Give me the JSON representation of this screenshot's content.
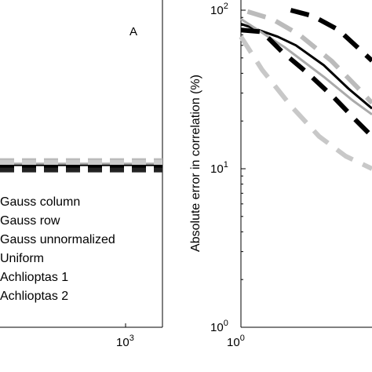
{
  "chart_data": [
    {
      "type": "line",
      "panel_label": "A",
      "x_scale": "log",
      "x_tick_labels": [
        {
          "base": "10",
          "exp": "3"
        }
      ],
      "legend": {
        "placement": "lower-left",
        "entries": [
          "Gauss column",
          "Gauss row",
          "Gauss unnormalized",
          "Uniform",
          "Achlioptas 1",
          "Achlioptas 2"
        ]
      },
      "series": [
        {
          "name": "Gauss column",
          "style": "solid",
          "color": "#000000",
          "y": [
            1.02,
            1.02
          ]
        },
        {
          "name": "Gauss row",
          "style": "solid",
          "color": "#aaaaaa",
          "y": [
            1.04,
            1.04
          ]
        },
        {
          "name": "Gauss unnormalized",
          "style": "dashed",
          "color": "#000000",
          "y": [
            1.0,
            1.0
          ]
        },
        {
          "name": "Uniform",
          "style": "dashed",
          "color": "#bbbbbb",
          "y": [
            1.07,
            1.07
          ]
        },
        {
          "name": "Achlioptas 1",
          "style": "dashed",
          "color": "#222222",
          "y": [
            0.97,
            0.97
          ]
        },
        {
          "name": "Achlioptas 2",
          "style": "dashed",
          "color": "#cccccc",
          "y": [
            1.05,
            1.05
          ]
        }
      ]
    },
    {
      "type": "line",
      "ylabel": "Absolute error in correlation (%)",
      "x_scale": "log",
      "y_scale": "log",
      "xlim": [
        1,
        1.8
      ],
      "ylim": [
        1,
        100
      ],
      "y_ticks": [
        {
          "value": 1,
          "base": "10",
          "exp": "0"
        },
        {
          "value": 10,
          "base": "10",
          "exp": "1"
        },
        {
          "value": 100,
          "base": "10",
          "exp": "2"
        }
      ],
      "x_tick_labels": [
        {
          "value": 1,
          "base": "10",
          "exp": "0"
        }
      ],
      "series": [
        {
          "name": "Gauss column",
          "style": "solid",
          "color": "#000000",
          "x": [
            1.0,
            1.18,
            1.28,
            1.45,
            1.62,
            1.8
          ],
          "y": [
            82,
            68,
            60,
            45,
            32,
            24
          ]
        },
        {
          "name": "Gauss row",
          "style": "solid",
          "color": "#aaaaaa",
          "x": [
            1.0,
            1.22,
            1.45,
            1.65,
            1.8
          ],
          "y": [
            88,
            58,
            38,
            27,
            22
          ]
        },
        {
          "name": "Gauss unnormalized",
          "style": "dashed",
          "color": "#000000",
          "x": [
            1.0,
            1.1,
            1.2,
            1.35,
            1.52,
            1.68,
            1.8
          ],
          "y": [
            75,
            73,
            55,
            40,
            28,
            20,
            16
          ]
        },
        {
          "name": "Uniform",
          "style": "dashed",
          "color": "#bbbbbb",
          "x": [
            1.03,
            1.15,
            1.3,
            1.5,
            1.68,
            1.8
          ],
          "y": [
            98,
            88,
            70,
            48,
            33,
            26
          ]
        },
        {
          "name": "Achlioptas 1",
          "style": "dashed",
          "color": "#000000",
          "x": [
            1.25,
            1.38,
            1.55,
            1.72,
            1.8
          ],
          "y": [
            100,
            92,
            75,
            55,
            48
          ]
        },
        {
          "name": "Achlioptas 2",
          "style": "dashed",
          "color": "#c8c8c8",
          "x": [
            1.0,
            1.1,
            1.25,
            1.42,
            1.6,
            1.8
          ],
          "y": [
            68,
            42,
            25,
            16,
            12,
            10
          ]
        }
      ]
    }
  ]
}
